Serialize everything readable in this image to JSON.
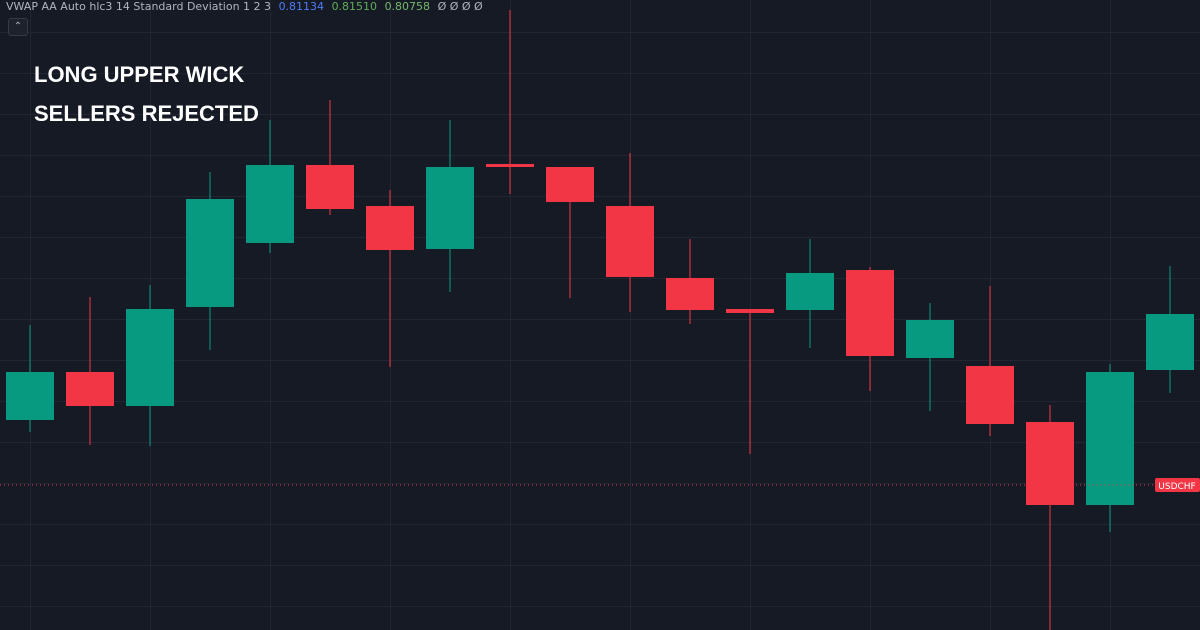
{
  "indicator": {
    "label": "VWAP AA Auto hlc3 14 Standard Deviation 1 2 3",
    "values": [
      "0.81134",
      "0.81510",
      "0.80758"
    ],
    "placeholders": "Ø Ø Ø Ø"
  },
  "annotation": [
    "LONG UPPER WICK",
    "SELLERS REJECTED"
  ],
  "chart_data": {
    "type": "candlestick",
    "open": [
      21.0,
      25.8,
      22.4,
      32.3,
      38.7,
      46.5,
      42.4,
      38.1,
      46.6,
      46.3,
      42.4,
      35.2,
      32.1,
      32.0,
      36.0,
      27.2,
      26.4,
      20.8,
      12.5,
      26.0
    ],
    "high": [
      30.5,
      33.3,
      34.5,
      45.8,
      51.0,
      53.0,
      44.0,
      51.0,
      62.0,
      46.3,
      47.7,
      39.1,
      32.1,
      39.1,
      36.3,
      32.7,
      34.4,
      22.5,
      26.6,
      36.4
    ],
    "low": [
      19.8,
      18.5,
      18.4,
      28.0,
      37.7,
      41.5,
      26.3,
      33.8,
      43.6,
      33.2,
      31.8,
      30.6,
      17.6,
      28.2,
      23.9,
      21.9,
      19.4,
      0,
      9.8,
      23.7
    ],
    "close": [
      25.8,
      22.4,
      32.1,
      43.1,
      46.5,
      42.1,
      38.0,
      46.3,
      46.3,
      42.8,
      35.3,
      32.0,
      31.7,
      35.7,
      27.4,
      31.0,
      20.6,
      12.5,
      25.8,
      31.6
    ],
    "up_color": "#089981",
    "down_color": "#f23645",
    "ylim": [
      0,
      63
    ],
    "price_line": {
      "label": "USDCHF",
      "value": 14.5
    }
  }
}
